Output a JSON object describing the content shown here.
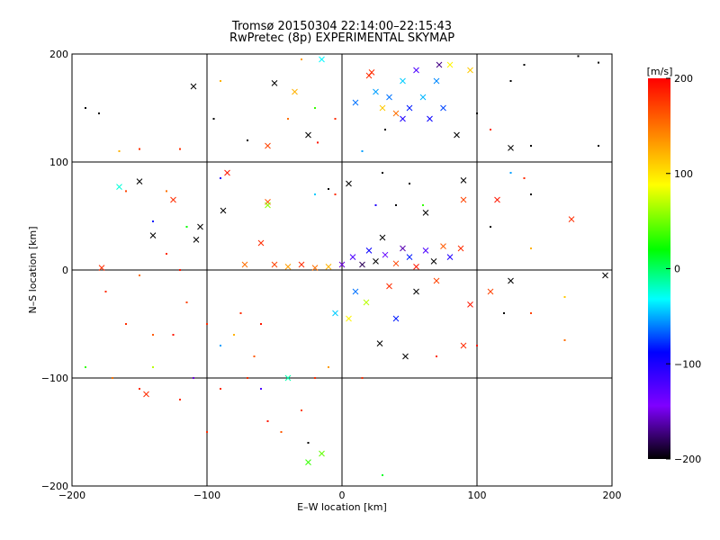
{
  "chart_data": {
    "type": "scatter",
    "title": "Tromsø 20150304 22:14:00–22:15:43",
    "subtitle": "RwPretec (8p) EXPERIMENTAL SKYMAP",
    "xlabel": "E–W location [km]",
    "ylabel": "N–S location [km]",
    "xlim": [
      -200,
      200
    ],
    "ylim": [
      -200,
      200
    ],
    "xticks": [
      -200,
      -100,
      0,
      100,
      200
    ],
    "yticks": [
      -200,
      -100,
      0,
      100,
      200
    ],
    "xtick_labels": [
      "−200",
      "−100",
      "0",
      "100",
      "200"
    ],
    "ytick_labels": [
      "−200",
      "−100",
      "0",
      "100",
      "200"
    ],
    "grid": true,
    "colorbar": {
      "label": "[m/s]",
      "range": [
        -200,
        200
      ],
      "ticks": [
        200,
        100,
        0,
        -100,
        -200
      ],
      "tick_labels": [
        "200",
        "100",
        "0",
        "−100",
        "−200"
      ],
      "colormap": [
        "#000000",
        "#7f00ff",
        "#0000ff",
        "#00ffff",
        "#00ff00",
        "#ffff00",
        "#ff7f00",
        "#ff0000"
      ]
    },
    "marker_styles": {
      "x": "cross",
      "dot": "small dot"
    },
    "points": [
      {
        "x": 25,
        "y": 165,
        "v": -50,
        "m": "x"
      },
      {
        "x": 35,
        "y": 160,
        "v": -60,
        "m": "x"
      },
      {
        "x": 45,
        "y": 175,
        "v": -40,
        "m": "x"
      },
      {
        "x": 50,
        "y": 150,
        "v": -80,
        "m": "x"
      },
      {
        "x": 55,
        "y": 185,
        "v": -120,
        "m": "x"
      },
      {
        "x": 60,
        "y": 160,
        "v": -45,
        "m": "x"
      },
      {
        "x": 65,
        "y": 140,
        "v": -90,
        "m": "x"
      },
      {
        "x": 70,
        "y": 175,
        "v": -55,
        "m": "x"
      },
      {
        "x": 75,
        "y": 150,
        "v": -70,
        "m": "x"
      },
      {
        "x": 40,
        "y": 145,
        "v": 150,
        "m": "x"
      },
      {
        "x": 30,
        "y": 150,
        "v": 110,
        "m": "x"
      },
      {
        "x": 20,
        "y": 180,
        "v": 180,
        "m": "x"
      },
      {
        "x": 72,
        "y": 190,
        "v": -170,
        "m": "x"
      },
      {
        "x": 80,
        "y": 190,
        "v": 90,
        "m": "x"
      },
      {
        "x": 95,
        "y": 185,
        "v": 110,
        "m": "x"
      },
      {
        "x": 85,
        "y": 125,
        "v": -200,
        "m": "x"
      },
      {
        "x": 45,
        "y": 140,
        "v": -100,
        "m": "x"
      },
      {
        "x": 10,
        "y": 155,
        "v": -60,
        "m": "x"
      },
      {
        "x": -15,
        "y": 195,
        "v": -30,
        "m": "x"
      },
      {
        "x": -35,
        "y": 165,
        "v": 120,
        "m": "x"
      },
      {
        "x": -55,
        "y": 115,
        "v": 170,
        "m": "x"
      },
      {
        "x": -110,
        "y": 170,
        "v": -200,
        "m": "x"
      },
      {
        "x": -50,
        "y": 173,
        "v": -200,
        "m": "x"
      },
      {
        "x": -25,
        "y": 125,
        "v": -200,
        "m": "x"
      },
      {
        "x": 22,
        "y": 183,
        "v": 180,
        "m": "x"
      },
      {
        "x": 125,
        "y": 113,
        "v": -200,
        "m": "x"
      },
      {
        "x": -150,
        "y": 82,
        "v": -200,
        "m": "x"
      },
      {
        "x": -125,
        "y": 65,
        "v": 180,
        "m": "x"
      },
      {
        "x": -165,
        "y": 77,
        "v": -20,
        "m": "x"
      },
      {
        "x": -85,
        "y": 90,
        "v": 190,
        "m": "x"
      },
      {
        "x": -55,
        "y": 63,
        "v": 160,
        "m": "x"
      },
      {
        "x": -88,
        "y": 55,
        "v": -200,
        "m": "x"
      },
      {
        "x": -105,
        "y": 40,
        "v": -200,
        "m": "x"
      },
      {
        "x": -108,
        "y": 28,
        "v": -200,
        "m": "x"
      },
      {
        "x": -140,
        "y": 32,
        "v": -200,
        "m": "x"
      },
      {
        "x": -178,
        "y": 2,
        "v": 180,
        "m": "x"
      },
      {
        "x": 115,
        "y": 65,
        "v": 190,
        "m": "x"
      },
      {
        "x": 90,
        "y": 83,
        "v": -200,
        "m": "x"
      },
      {
        "x": 90,
        "y": 65,
        "v": 170,
        "m": "x"
      },
      {
        "x": 62,
        "y": 53,
        "v": -200,
        "m": "x"
      },
      {
        "x": 170,
        "y": 47,
        "v": 180,
        "m": "x"
      },
      {
        "x": 195,
        "y": -5,
        "v": -200,
        "m": "x"
      },
      {
        "x": 125,
        "y": -10,
        "v": -200,
        "m": "x"
      },
      {
        "x": 110,
        "y": -20,
        "v": 170,
        "m": "x"
      },
      {
        "x": 95,
        "y": -32,
        "v": 190,
        "m": "x"
      },
      {
        "x": 90,
        "y": -70,
        "v": 180,
        "m": "x"
      },
      {
        "x": 47,
        "y": -80,
        "v": -200,
        "m": "x"
      },
      {
        "x": 28,
        "y": -68,
        "v": -200,
        "m": "x"
      },
      {
        "x": 40,
        "y": -45,
        "v": -80,
        "m": "x"
      },
      {
        "x": -145,
        "y": -115,
        "v": 180,
        "m": "x"
      },
      {
        "x": -40,
        "y": -100,
        "v": -10,
        "m": "x"
      },
      {
        "x": -15,
        "y": -170,
        "v": 50,
        "m": "x"
      },
      {
        "x": -25,
        "y": -178,
        "v": 40,
        "m": "x"
      },
      {
        "x": -55,
        "y": 60,
        "v": 60,
        "m": "x"
      },
      {
        "x": -60,
        "y": 25,
        "v": 180,
        "m": "x"
      },
      {
        "x": -72,
        "y": 5,
        "v": 150,
        "m": "x"
      },
      {
        "x": -50,
        "y": 5,
        "v": 170,
        "m": "x"
      },
      {
        "x": -40,
        "y": 3,
        "v": 130,
        "m": "x"
      },
      {
        "x": -30,
        "y": 5,
        "v": 180,
        "m": "x"
      },
      {
        "x": -20,
        "y": 2,
        "v": 150,
        "m": "x"
      },
      {
        "x": -10,
        "y": 3,
        "v": 120,
        "m": "x"
      },
      {
        "x": 0,
        "y": 5,
        "v": -150,
        "m": "x"
      },
      {
        "x": 8,
        "y": 12,
        "v": -120,
        "m": "x"
      },
      {
        "x": 15,
        "y": 5,
        "v": -180,
        "m": "x"
      },
      {
        "x": 20,
        "y": 18,
        "v": -90,
        "m": "x"
      },
      {
        "x": 25,
        "y": 8,
        "v": -200,
        "m": "x"
      },
      {
        "x": 32,
        "y": 14,
        "v": -130,
        "m": "x"
      },
      {
        "x": 40,
        "y": 6,
        "v": 170,
        "m": "x"
      },
      {
        "x": 45,
        "y": 20,
        "v": -160,
        "m": "x"
      },
      {
        "x": 50,
        "y": 12,
        "v": -80,
        "m": "x"
      },
      {
        "x": 55,
        "y": 3,
        "v": 190,
        "m": "x"
      },
      {
        "x": 62,
        "y": 18,
        "v": -120,
        "m": "x"
      },
      {
        "x": 68,
        "y": 8,
        "v": -200,
        "m": "x"
      },
      {
        "x": 75,
        "y": 22,
        "v": 160,
        "m": "x"
      },
      {
        "x": 80,
        "y": 12,
        "v": -100,
        "m": "x"
      },
      {
        "x": 88,
        "y": 20,
        "v": 180,
        "m": "x"
      },
      {
        "x": 35,
        "y": -15,
        "v": 180,
        "m": "x"
      },
      {
        "x": 55,
        "y": -20,
        "v": -200,
        "m": "x"
      },
      {
        "x": 10,
        "y": -20,
        "v": -60,
        "m": "x"
      },
      {
        "x": 18,
        "y": -30,
        "v": 70,
        "m": "x"
      },
      {
        "x": -5,
        "y": -40,
        "v": -40,
        "m": "x"
      },
      {
        "x": 5,
        "y": -45,
        "v": 90,
        "m": "x"
      },
      {
        "x": 30,
        "y": 30,
        "v": -200,
        "m": "x"
      },
      {
        "x": 5,
        "y": 80,
        "v": -200,
        "m": "x"
      },
      {
        "x": 70,
        "y": -10,
        "v": 170,
        "m": "x"
      }
    ],
    "dots": [
      {
        "x": -190,
        "y": 150,
        "v": -200
      },
      {
        "x": -180,
        "y": 145,
        "v": -200
      },
      {
        "x": -95,
        "y": 140,
        "v": -200
      },
      {
        "x": -70,
        "y": 120,
        "v": -200
      },
      {
        "x": -120,
        "y": 112,
        "v": 180
      },
      {
        "x": -150,
        "y": 112,
        "v": 180
      },
      {
        "x": -165,
        "y": 110,
        "v": 120
      },
      {
        "x": -90,
        "y": 85,
        "v": -100
      },
      {
        "x": -160,
        "y": 73,
        "v": 170
      },
      {
        "x": -130,
        "y": 73,
        "v": 150
      },
      {
        "x": -140,
        "y": 45,
        "v": -80
      },
      {
        "x": -115,
        "y": 40,
        "v": 30
      },
      {
        "x": -130,
        "y": 15,
        "v": 180
      },
      {
        "x": -120,
        "y": 0,
        "v": 190
      },
      {
        "x": -150,
        "y": -5,
        "v": 150
      },
      {
        "x": -175,
        "y": -20,
        "v": 180
      },
      {
        "x": -160,
        "y": -50,
        "v": 180
      },
      {
        "x": -140,
        "y": -60,
        "v": 160
      },
      {
        "x": -125,
        "y": -60,
        "v": 190
      },
      {
        "x": -115,
        "y": -30,
        "v": 170
      },
      {
        "x": -100,
        "y": -50,
        "v": 180
      },
      {
        "x": -90,
        "y": -70,
        "v": -50
      },
      {
        "x": -80,
        "y": -60,
        "v": 120
      },
      {
        "x": -75,
        "y": -40,
        "v": 180
      },
      {
        "x": -60,
        "y": -50,
        "v": 190
      },
      {
        "x": -65,
        "y": -80,
        "v": 160
      },
      {
        "x": -140,
        "y": -90,
        "v": 70
      },
      {
        "x": -150,
        "y": -110,
        "v": 180
      },
      {
        "x": -170,
        "y": -100,
        "v": 150
      },
      {
        "x": -190,
        "y": -90,
        "v": 40
      },
      {
        "x": -120,
        "y": -120,
        "v": 180
      },
      {
        "x": -110,
        "y": -100,
        "v": -150
      },
      {
        "x": -90,
        "y": -110,
        "v": 180
      },
      {
        "x": -70,
        "y": -100,
        "v": 180
      },
      {
        "x": -60,
        "y": -110,
        "v": -120
      },
      {
        "x": -55,
        "y": -140,
        "v": 190
      },
      {
        "x": -45,
        "y": -150,
        "v": 160
      },
      {
        "x": -100,
        "y": -150,
        "v": 180
      },
      {
        "x": -30,
        "y": -130,
        "v": 170
      },
      {
        "x": -20,
        "y": -100,
        "v": 180
      },
      {
        "x": -10,
        "y": -90,
        "v": 130
      },
      {
        "x": 30,
        "y": -190,
        "v": 20
      },
      {
        "x": -25,
        "y": -160,
        "v": -200
      },
      {
        "x": 15,
        "y": -100,
        "v": 180
      },
      {
        "x": 70,
        "y": -80,
        "v": 180
      },
      {
        "x": 100,
        "y": -70,
        "v": 190
      },
      {
        "x": 120,
        "y": -40,
        "v": -200
      },
      {
        "x": 140,
        "y": -40,
        "v": 170
      },
      {
        "x": 165,
        "y": -65,
        "v": 150
      },
      {
        "x": 165,
        "y": -25,
        "v": 110
      },
      {
        "x": 140,
        "y": 20,
        "v": 120
      },
      {
        "x": 110,
        "y": 40,
        "v": -200
      },
      {
        "x": 140,
        "y": 70,
        "v": -200
      },
      {
        "x": 135,
        "y": 85,
        "v": 180
      },
      {
        "x": 125,
        "y": 90,
        "v": -50
      },
      {
        "x": 140,
        "y": 115,
        "v": -200
      },
      {
        "x": 190,
        "y": 115,
        "v": -200
      },
      {
        "x": 125,
        "y": 175,
        "v": -200
      },
      {
        "x": 135,
        "y": 190,
        "v": -200
      },
      {
        "x": 175,
        "y": 198,
        "v": -200
      },
      {
        "x": 190,
        "y": 192,
        "v": -200
      },
      {
        "x": 100,
        "y": 145,
        "v": -200
      },
      {
        "x": 110,
        "y": 130,
        "v": 180
      },
      {
        "x": 32,
        "y": 130,
        "v": -200
      },
      {
        "x": 15,
        "y": 110,
        "v": -50
      },
      {
        "x": -5,
        "y": 140,
        "v": 180
      },
      {
        "x": -18,
        "y": 118,
        "v": 190
      },
      {
        "x": -20,
        "y": 150,
        "v": 40
      },
      {
        "x": -40,
        "y": 140,
        "v": 150
      },
      {
        "x": -30,
        "y": 195,
        "v": 130
      },
      {
        "x": -90,
        "y": 175,
        "v": 120
      },
      {
        "x": -10,
        "y": 75,
        "v": -200
      },
      {
        "x": -20,
        "y": 70,
        "v": -40
      },
      {
        "x": -5,
        "y": 70,
        "v": 180
      },
      {
        "x": 30,
        "y": 90,
        "v": -200
      },
      {
        "x": 50,
        "y": 80,
        "v": -200
      },
      {
        "x": 60,
        "y": 60,
        "v": 40
      },
      {
        "x": 25,
        "y": 60,
        "v": -100
      },
      {
        "x": 40,
        "y": 60,
        "v": -200
      }
    ]
  }
}
